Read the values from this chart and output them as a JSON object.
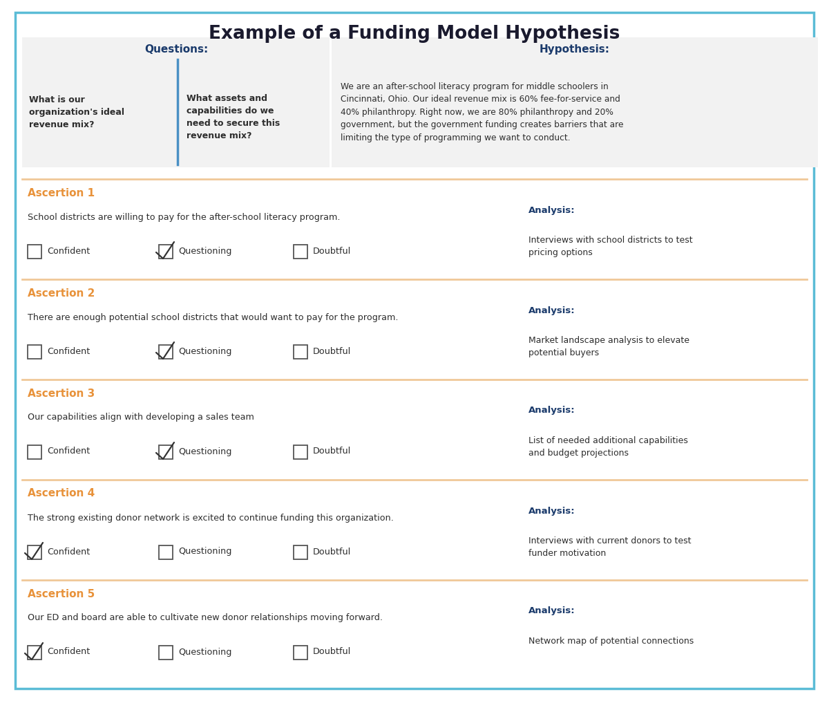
{
  "title": "Example of a Funding Model Hypothesis",
  "title_color": "#1a1a2e",
  "title_fontsize": 19,
  "border_color": "#5bbcd6",
  "background_color": "#ffffff",
  "orange_color": "#e8923a",
  "navy_color": "#1a3a6b",
  "dark_text": "#2d2d2d",
  "gray_bg": "#f2f2f2",
  "divider_color": "#f0c898",
  "blue_divider": "#4a90c4",
  "questions_label": "Questions:",
  "hypothesis_label": "Hypothesis:",
  "q1_text": "What is our\norganization's ideal\nrevenue mix?",
  "q2_text": "What assets and\ncapabilities do we\nneed to secure this\nrevenue mix?",
  "hypothesis_text": "We are an after-school literacy program for middle schoolers in\nCincinnati, Ohio. Our ideal revenue mix is 60% fee-for-service and\n40% philanthropy. Right now, we are 80% philanthropy and 20%\ngovernment, but the government funding creates barriers that are\nlimiting the type of programming we want to conduct.",
  "assertions": [
    {
      "title": "Ascertion 1",
      "text": "School districts are willing to pay for the after-school literacy program.",
      "checked": "questioning",
      "analysis_title": "Analysis:",
      "analysis_text": "Interviews with school districts to test\npricing options"
    },
    {
      "title": "Ascertion 2",
      "text": "There are enough potential school districts that would want to pay for the program.",
      "checked": "questioning",
      "analysis_title": "Analysis:",
      "analysis_text": "Market landscape analysis to elevate\npotential buyers"
    },
    {
      "title": "Ascertion 3",
      "text": "Our capabilities align with developing a sales team",
      "checked": "questioning",
      "analysis_title": "Analysis:",
      "analysis_text": "List of needed additional capabilities\nand budget projections"
    },
    {
      "title": "Ascertion 4",
      "text": "The strong existing donor network is excited to continue funding this organization.",
      "checked": "confident",
      "analysis_title": "Analysis:",
      "analysis_text": "Interviews with current donors to test\nfunder motivation"
    },
    {
      "title": "Ascertion 5",
      "text": "Our ED and board are able to cultivate new donor relationships moving forward.",
      "checked": "confident",
      "analysis_title": "Analysis:",
      "analysis_text": "Network map of potential connections"
    }
  ]
}
